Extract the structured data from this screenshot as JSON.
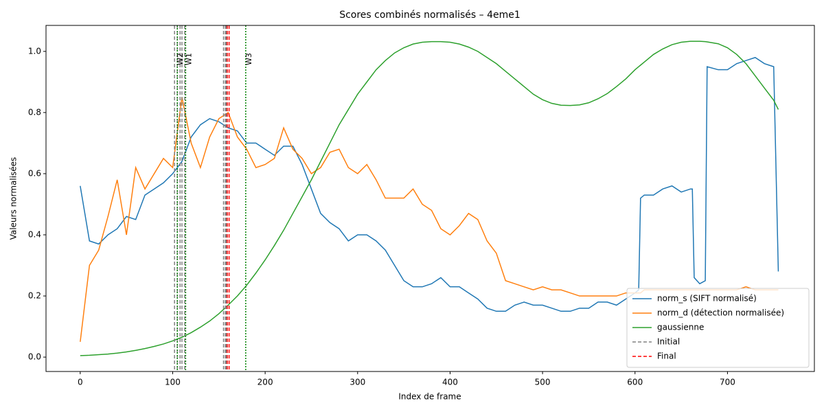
{
  "chart_data": {
    "type": "line",
    "title": "Scores combinés normalisés – 4eme1",
    "xlabel": "Index de frame",
    "ylabel": "Valeurs normalisées",
    "x": [
      0,
      10,
      20,
      30,
      40,
      50,
      60,
      70,
      80,
      90,
      100,
      110,
      120,
      130,
      140,
      150,
      160,
      170,
      180,
      190,
      200,
      210,
      220,
      230,
      240,
      250,
      260,
      270,
      280,
      290,
      300,
      310,
      320,
      330,
      340,
      350,
      360,
      370,
      380,
      390,
      400,
      410,
      420,
      430,
      440,
      450,
      460,
      470,
      480,
      490,
      500,
      510,
      520,
      530,
      540,
      550,
      560,
      570,
      580,
      590,
      600,
      604,
      606,
      610,
      620,
      630,
      640,
      650,
      660,
      662,
      664,
      670,
      676,
      678,
      690,
      700,
      710,
      720,
      730,
      740,
      750,
      755
    ],
    "series": [
      {
        "name": "norm_s (SIFT normalisé)",
        "color": "#1f77b4",
        "values": [
          0.56,
          0.38,
          0.37,
          0.4,
          0.42,
          0.46,
          0.45,
          0.53,
          0.55,
          0.57,
          0.6,
          0.64,
          0.72,
          0.76,
          0.78,
          0.77,
          0.75,
          0.74,
          0.7,
          0.7,
          0.68,
          0.66,
          0.69,
          0.69,
          0.63,
          0.55,
          0.47,
          0.44,
          0.42,
          0.38,
          0.4,
          0.4,
          0.38,
          0.35,
          0.3,
          0.25,
          0.23,
          0.23,
          0.24,
          0.26,
          0.23,
          0.23,
          0.21,
          0.19,
          0.16,
          0.15,
          0.15,
          0.17,
          0.18,
          0.17,
          0.17,
          0.16,
          0.15,
          0.15,
          0.16,
          0.16,
          0.18,
          0.18,
          0.17,
          0.19,
          0.21,
          0.22,
          0.52,
          0.53,
          0.53,
          0.55,
          0.56,
          0.54,
          0.55,
          0.55,
          0.26,
          0.24,
          0.25,
          0.95,
          0.94,
          0.94,
          0.96,
          0.97,
          0.98,
          0.96,
          0.95,
          0.28
        ]
      },
      {
        "name": "norm_d (détection normalisée)",
        "color": "#ff7f0e",
        "values": [
          0.05,
          0.3,
          0.35,
          0.46,
          0.58,
          0.4,
          0.62,
          0.55,
          0.6,
          0.65,
          0.62,
          0.85,
          0.7,
          0.62,
          0.72,
          0.78,
          0.8,
          0.72,
          0.68,
          0.62,
          0.63,
          0.65,
          0.75,
          0.68,
          0.65,
          0.6,
          0.62,
          0.67,
          0.68,
          0.62,
          0.6,
          0.63,
          0.58,
          0.52,
          0.52,
          0.52,
          0.55,
          0.5,
          0.48,
          0.42,
          0.4,
          0.43,
          0.47,
          0.45,
          0.38,
          0.34,
          0.25,
          0.24,
          0.23,
          0.22,
          0.23,
          0.22,
          0.22,
          0.21,
          0.2,
          0.2,
          0.2,
          0.2,
          0.2,
          0.21,
          0.21,
          0.21,
          0.21,
          0.22,
          0.22,
          0.22,
          0.22,
          0.22,
          0.22,
          0.22,
          0.22,
          0.22,
          0.22,
          0.22,
          0.22,
          0.22,
          0.22,
          0.23,
          0.22,
          0.22,
          0.22,
          0.22
        ]
      },
      {
        "name": "gaussienne",
        "color": "#2ca02c",
        "values": [
          0.005,
          0.006,
          0.008,
          0.01,
          0.013,
          0.017,
          0.022,
          0.028,
          0.035,
          0.043,
          0.053,
          0.065,
          0.08,
          0.098,
          0.118,
          0.142,
          0.17,
          0.2,
          0.235,
          0.275,
          0.318,
          0.365,
          0.415,
          0.47,
          0.525,
          0.58,
          0.64,
          0.7,
          0.76,
          0.81,
          0.86,
          0.9,
          0.94,
          0.97,
          0.995,
          1.012,
          1.024,
          1.03,
          1.032,
          1.032,
          1.03,
          1.024,
          1.014,
          1.0,
          0.98,
          0.96,
          0.935,
          0.91,
          0.885,
          0.86,
          0.842,
          0.83,
          0.824,
          0.823,
          0.825,
          0.832,
          0.845,
          0.862,
          0.885,
          0.91,
          0.94,
          0.95,
          0.955,
          0.965,
          0.99,
          1.008,
          1.022,
          1.03,
          1.033,
          1.033,
          1.033,
          1.033,
          1.032,
          1.031,
          1.025,
          1.012,
          0.99,
          0.96,
          0.92,
          0.88,
          0.84,
          0.81
        ]
      }
    ],
    "initial_lines": {
      "name": "Initial",
      "color": "#808080",
      "x": [
        102,
        105,
        108,
        110,
        113,
        155,
        157,
        158
      ]
    },
    "final_lines": {
      "name": "Final",
      "color": "#ff0000",
      "x": [
        159,
        161
      ]
    },
    "windows": {
      "color": "#008000",
      "marks": [
        {
          "label": "W2",
          "x": 105
        },
        {
          "label": "W1",
          "x": 114
        },
        {
          "label": "W3",
          "x": 179
        }
      ]
    },
    "xlim": [
      -37,
      794
    ],
    "ylim": [
      -0.047,
      1.085
    ],
    "xticks": [
      0,
      100,
      200,
      300,
      400,
      500,
      600,
      700
    ],
    "yticks": [
      {
        "value": 0,
        "label": "0.0"
      },
      {
        "value": 0.2,
        "label": "0.2"
      },
      {
        "value": 0.4,
        "label": "0.4"
      },
      {
        "value": 0.6,
        "label": "0.6"
      },
      {
        "value": 0.8,
        "label": "0.8"
      },
      {
        "value": 1.0,
        "label": "1.0"
      }
    ],
    "grid": false,
    "legend": "lower right"
  }
}
